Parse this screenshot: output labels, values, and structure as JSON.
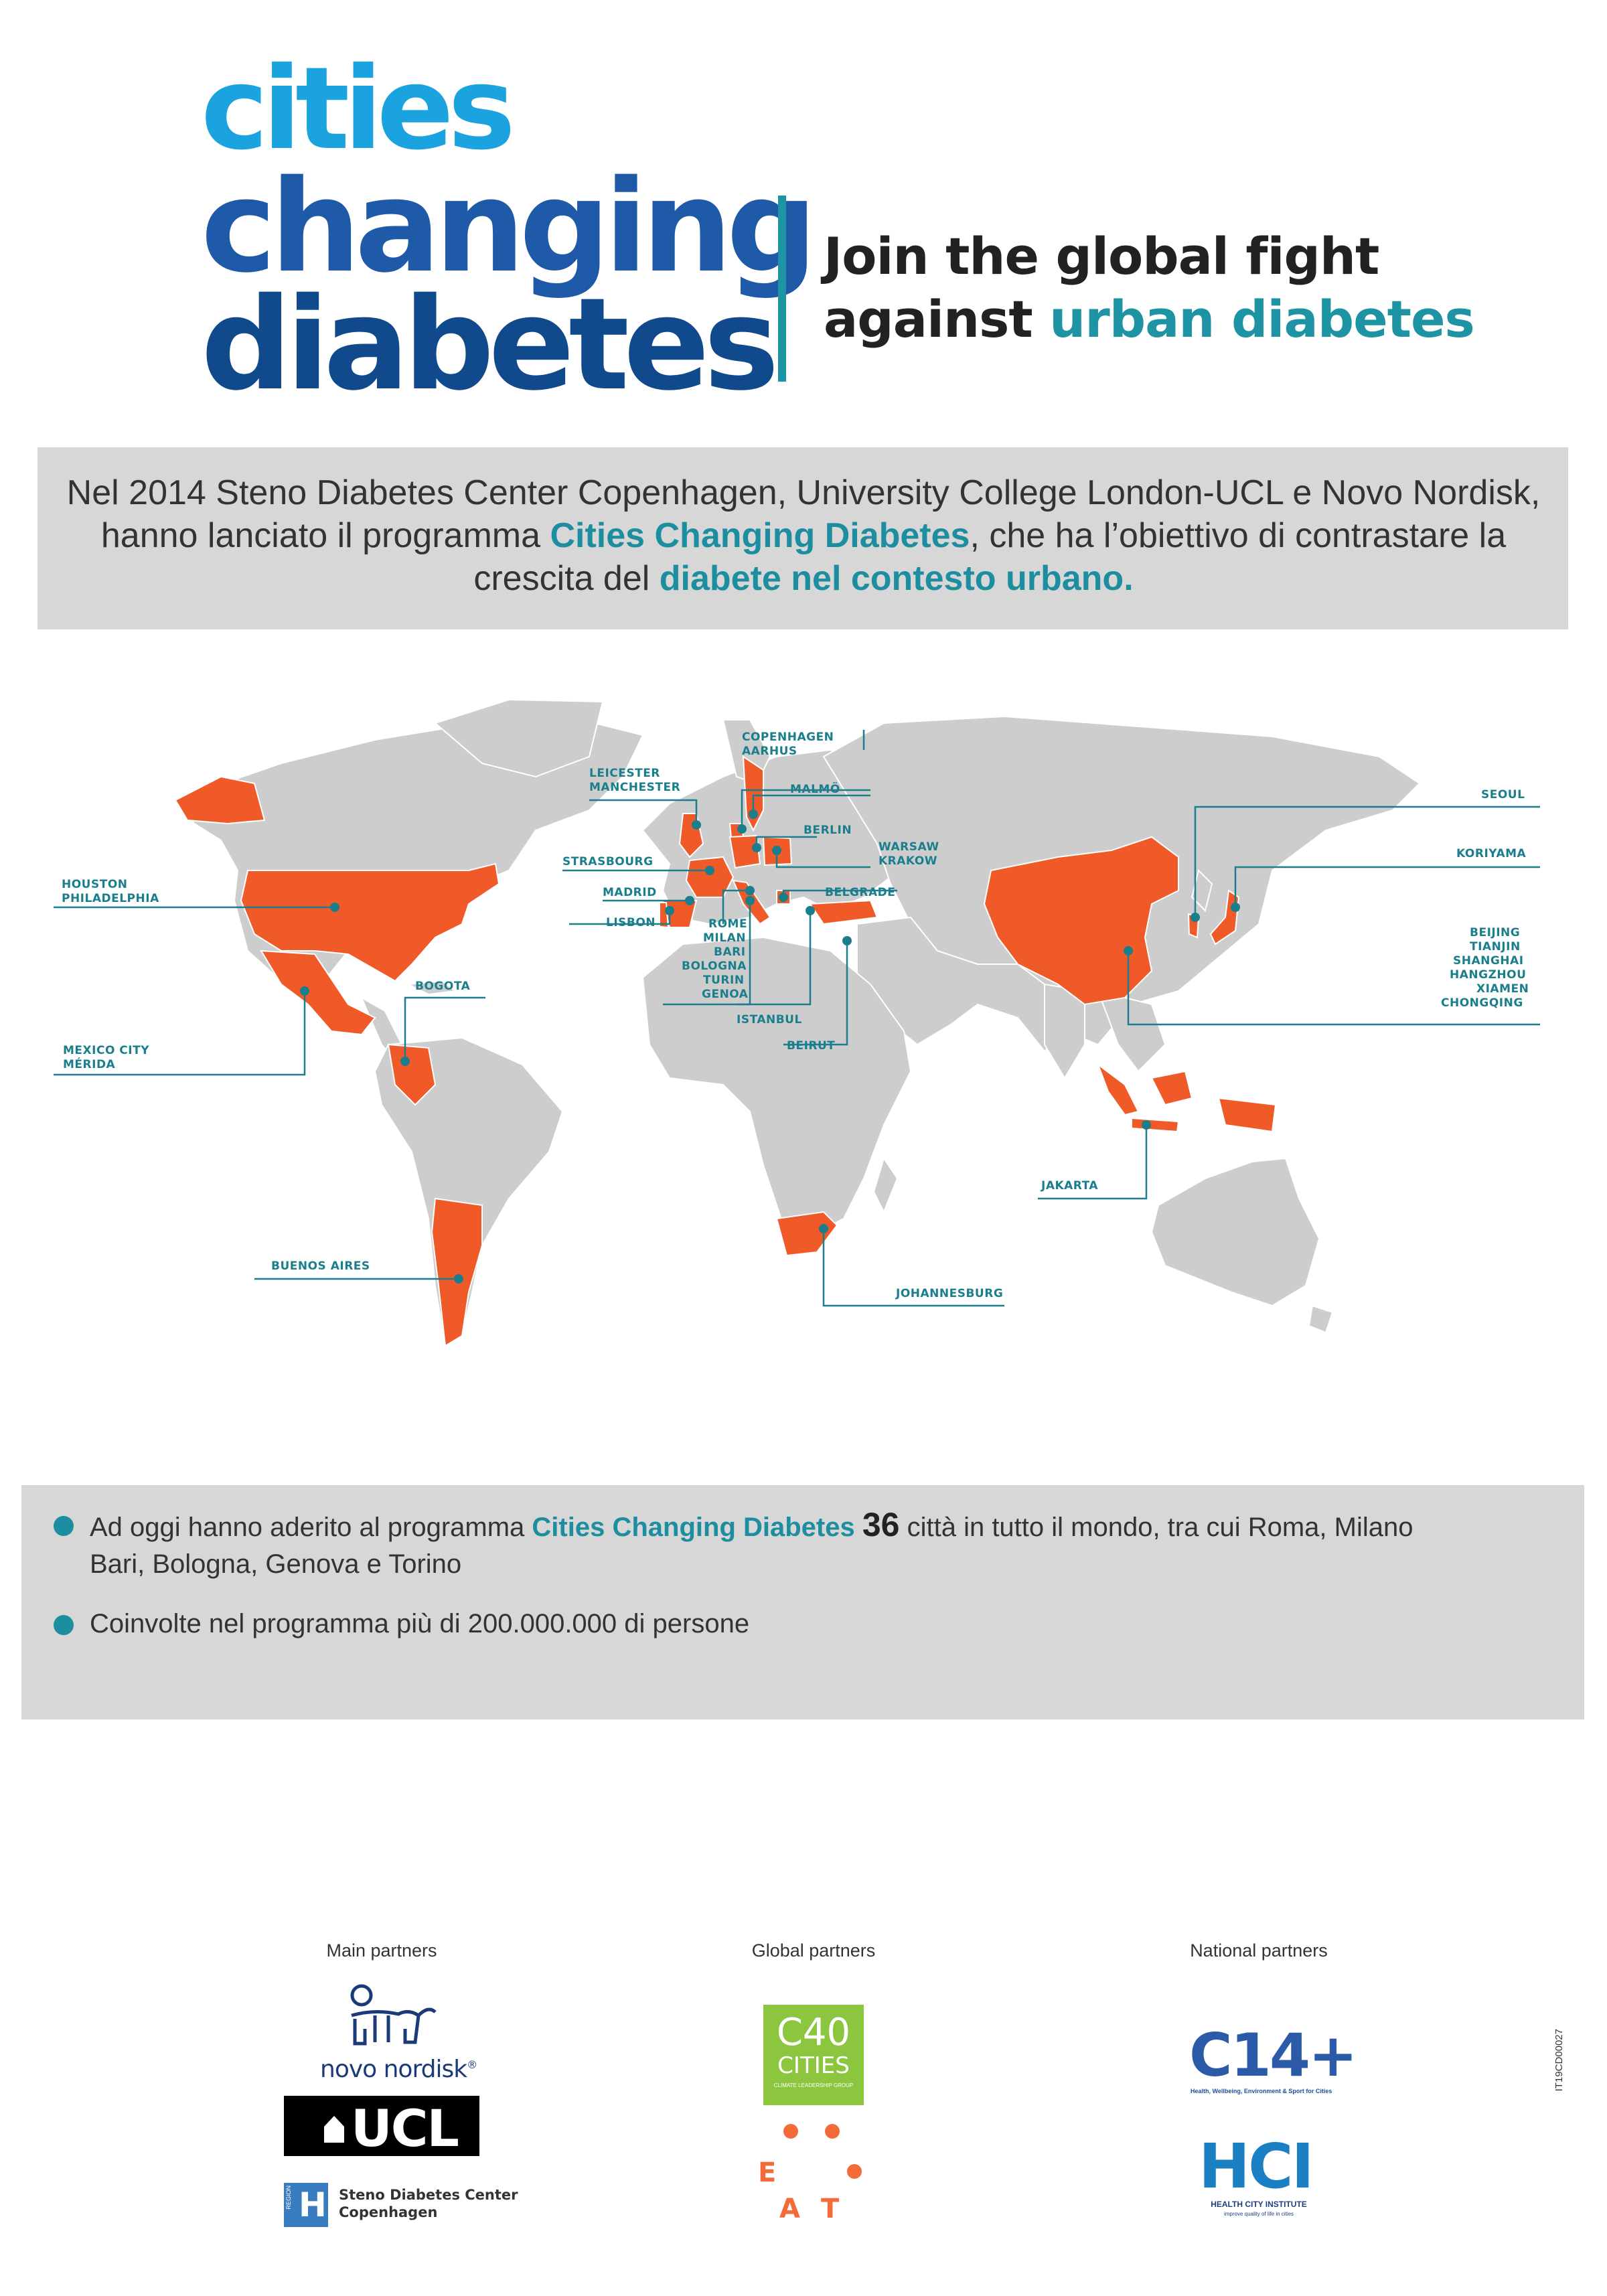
{
  "header": {
    "logo_line1": "cities",
    "logo_line2": "changing",
    "logo_line3": "diabetes",
    "tagline_line1": "Join the global fight",
    "tagline_line2_prefix": "against ",
    "tagline_line2_highlight": "urban diabetes"
  },
  "intro": {
    "part1": "Nel 2014 Steno Diabetes Center Copenhagen, University College London-UCL e Novo Nordisk, hanno lanciato il programma ",
    "highlight1": "Cities Changing Diabetes",
    "part2": ", che ha l’obiettivo di contrastare la crescita del ",
    "highlight2": "diabete nel contesto urbano",
    "part3": "."
  },
  "map_labels": {
    "copenhagen": "COPENHAGEN",
    "aarhus": "AARHUS",
    "leicester": "LEICESTER",
    "manchester": "MANCHESTER",
    "malmo": "MALMÖ",
    "berlin": "BERLIN",
    "strasbourg": "STRASBOURG",
    "warsaw": "WARSAW",
    "krakow": "KRAKOW",
    "madrid": "MADRID",
    "belgrade": "BELGRADE",
    "lisbon": "LISBON",
    "rome": "ROME",
    "milan": "MILAN",
    "bari": "BARI",
    "bologna": "BOLOGNA",
    "turin": "TURIN",
    "genoa": "GENOA",
    "istanbul": "ISTANBUL",
    "beirut": "BEIRUT",
    "houston": "HOUSTON",
    "philadelphia": "PHILADELPHIA",
    "bogota": "BOGOTA",
    "mexico_city": "MEXICO CITY",
    "merida": "MÉRIDA",
    "buenos_aires": "BUENOS AIRES",
    "johannesburg": "JOHANNESBURG",
    "jakarta": "JAKARTA",
    "seoul": "SEOUL",
    "koriyama": "KORIYAMA",
    "beijing": "BEIJING",
    "tianjin": "TIANJIN",
    "shanghai": "SHANGHAI",
    "hangzhou": "HANGZHOU",
    "xiamen": "XIAMEN",
    "chongqing": "CHONGQING"
  },
  "facts": {
    "f1_part1": "Ad oggi hanno aderito al programma ",
    "f1_highlight": "Cities Changing Diabetes",
    "f1_number": "36",
    "f1_part2": " città in tutto il mondo, tra cui Roma, Milano",
    "f1_line2": "Bari, Bologna, Genova e Torino",
    "f2": "Coinvolte nel programma più di 200.000.000 di persone"
  },
  "partners": {
    "main_title": "Main partners",
    "global_title": "Global partners",
    "national_title": "National partners",
    "novo": "novo nordisk",
    "novo_reg": "®",
    "ucl": "UCL",
    "steno_region": "REGION",
    "steno_line1": "Steno Diabetes Center",
    "steno_line2": "Copenhagen",
    "c40_line1": "C40",
    "c40_line2": "CITIES",
    "c40_line3": "CLIMATE LEADERSHIP GROUP",
    "eat_e": "E",
    "eat_a": "A",
    "eat_t": "T",
    "c14": "C14+",
    "c14_sub": "Health, Wellbeing, Environment & Sport for Cities",
    "hci": "HCI",
    "hci_line1": "HEALTH CITY INSTITUTE",
    "hci_line2": "improve quality of life in cities"
  },
  "code": "IT19CD00027",
  "colors": {
    "teal": "#1d93a4",
    "highlight_orange": "#f05a28",
    "land_grey": "#cdcdcd",
    "band_grey": "#d6d7d6"
  }
}
